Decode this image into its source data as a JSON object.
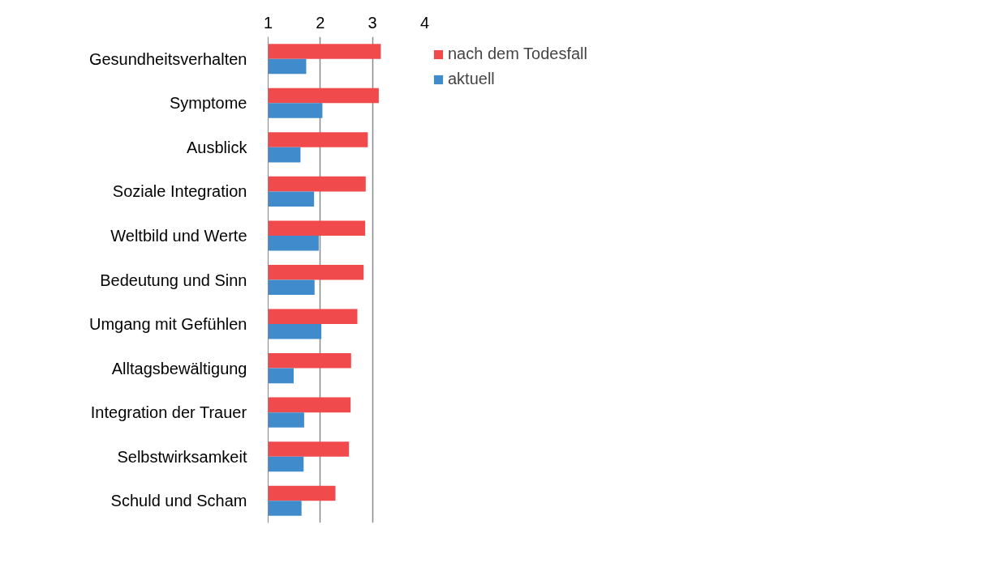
{
  "chart_data": {
    "type": "bar",
    "orientation": "horizontal",
    "categories": [
      "Gesundheitsverhalten",
      "Symptome",
      "Ausblick",
      "Soziale Integration",
      "Weltbild und Werte",
      "Bedeutung und Sinn",
      "Umgang mit Gefühlen",
      "Alltagsbewältigung",
      "Integration der Trauer",
      "Selbstwirksamkeit",
      "Schuld und Scham"
    ],
    "series": [
      {
        "name": "nach dem Todesfall",
        "color": "#f04a4c",
        "values": [
          3.16,
          3.12,
          2.91,
          2.87,
          2.86,
          2.83,
          2.71,
          2.59,
          2.58,
          2.55,
          2.29
        ]
      },
      {
        "name": "aktuell",
        "color": "#3f8bcb",
        "values": [
          1.73,
          2.04,
          1.62,
          1.88,
          1.97,
          1.89,
          2.02,
          1.49,
          1.69,
          1.68,
          1.64
        ]
      }
    ],
    "xlim": [
      1,
      4
    ],
    "xticks": [
      1,
      2,
      3,
      4
    ],
    "grid": "x",
    "legend": "top right"
  }
}
